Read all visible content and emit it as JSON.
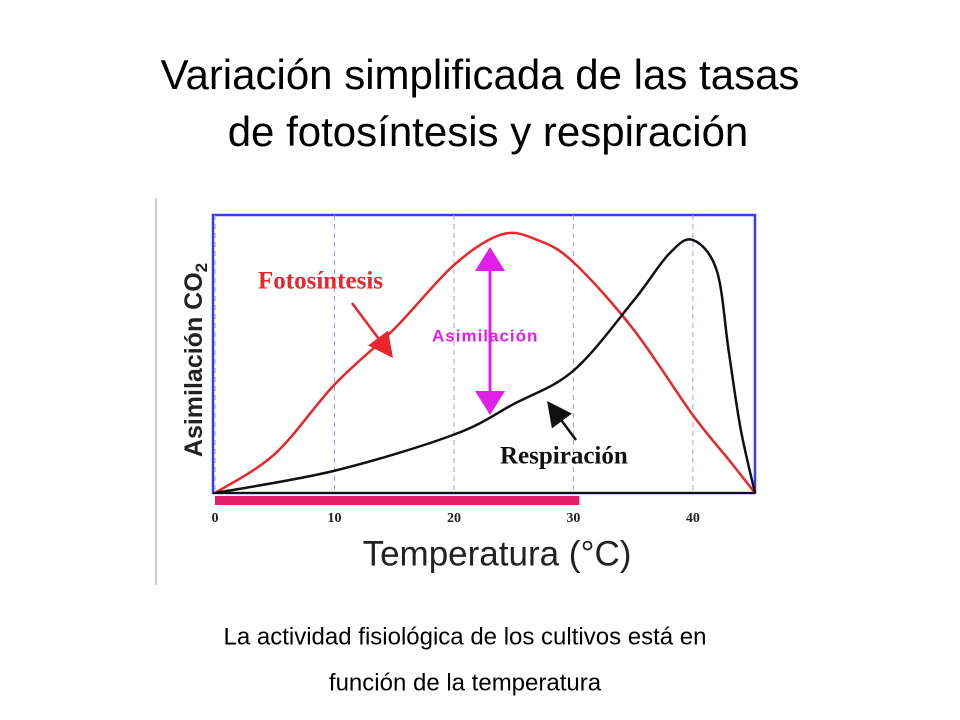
{
  "chart_data": {
    "type": "line",
    "title": [
      "Variación simplificada de las tasas",
      "de fotosíntesis y respiración"
    ],
    "ylabel": "Asimilación CO",
    "ylabel_subscript": "2",
    "xlabel": "Temperatura (°C)",
    "annotation": "Asimilación",
    "caption": [
      "La actividad fisiológica de los cultivos está en",
      "función de la temperatura"
    ],
    "xlim": [
      0,
      45.2
    ],
    "xticks": [
      0,
      10,
      20,
      30,
      40
    ],
    "ylim": [
      0,
      100
    ],
    "grid": true,
    "highlight_xrange": [
      0,
      30.5
    ],
    "series": [
      {
        "name": "Fotosíntesis",
        "color": "#e8262b",
        "x": [
          0,
          5,
          10,
          15,
          20,
          24,
          27,
          30,
          35,
          40,
          43,
          45.2
        ],
        "values": [
          0,
          14,
          39,
          59,
          82,
          93,
          91,
          83,
          59,
          28,
          12,
          0
        ]
      },
      {
        "name": "Respiración",
        "color": "#111111",
        "x": [
          0,
          10,
          20,
          25,
          30,
          35,
          38,
          40,
          42,
          43,
          44,
          45.2
        ],
        "values": [
          0,
          8,
          21,
          32,
          44,
          69,
          86,
          91,
          80,
          51,
          23,
          0
        ]
      }
    ]
  }
}
